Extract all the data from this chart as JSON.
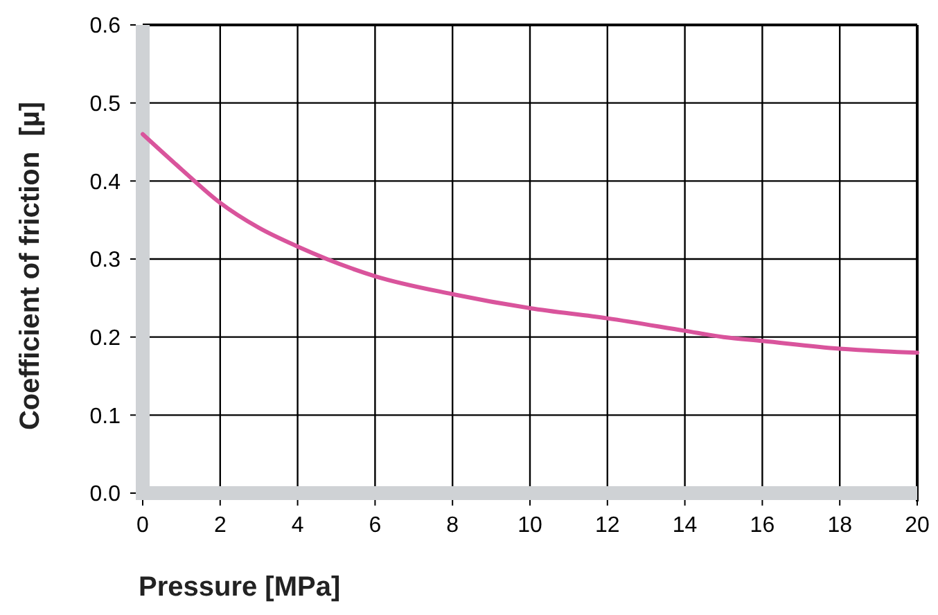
{
  "chart_data": {
    "type": "line",
    "xlabel": "Pressure [MPa]",
    "ylabel": "Coefficient of friction  [µ]",
    "x": [
      0,
      1,
      2,
      3,
      4,
      6,
      8,
      10,
      12,
      14,
      15,
      16,
      18,
      20
    ],
    "series": [
      {
        "color": "#d9549c",
        "values": [
          0.46,
          0.415,
          0.372,
          0.34,
          0.316,
          0.278,
          0.255,
          0.237,
          0.224,
          0.208,
          0.2,
          0.195,
          0.185,
          0.18
        ]
      }
    ],
    "xlim": [
      0,
      20
    ],
    "xticks": [
      0,
      2,
      4,
      6,
      8,
      10,
      12,
      14,
      16,
      18,
      20
    ],
    "ylim": [
      0,
      0.6
    ],
    "yticks": [
      {
        "value": 0,
        "label": "0.0"
      },
      {
        "value": 0.1,
        "label": "0.1"
      },
      {
        "value": 0.2,
        "label": "0.2"
      },
      {
        "value": 0.3,
        "label": "0.3"
      },
      {
        "value": 0.4,
        "label": "0.4"
      },
      {
        "value": 0.5,
        "label": "0.5"
      },
      {
        "value": 0.6,
        "label": "0.6"
      }
    ],
    "grid": true,
    "marker": "none",
    "line_style": "solid"
  }
}
